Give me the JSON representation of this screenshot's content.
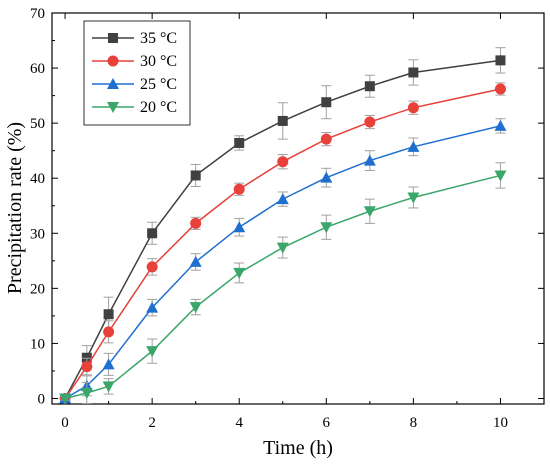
{
  "chart_data": {
    "type": "line",
    "xlabel": "Time (h)",
    "ylabel": "Precipitation rate (%)",
    "xlim": [
      -0.3,
      11
    ],
    "ylim": [
      -1,
      70
    ],
    "xticks": [
      0,
      2,
      4,
      6,
      8,
      10
    ],
    "yticks": [
      0,
      10,
      20,
      30,
      40,
      50,
      60,
      70
    ],
    "x": [
      0,
      0.5,
      1,
      2,
      3,
      4,
      5,
      6,
      7,
      8,
      10
    ],
    "legend_position": "top-left",
    "grid": false,
    "series": [
      {
        "name": "35 °C",
        "color": "#404040",
        "marker": "square",
        "values": [
          0,
          7.4,
          15.3,
          30.0,
          40.5,
          46.4,
          50.4,
          53.8,
          56.7,
          59.2,
          61.4
        ],
        "errors": [
          0.3,
          2.2,
          3.1,
          2.0,
          2.0,
          1.3,
          3.3,
          3.0,
          2.0,
          2.3,
          2.3
        ]
      },
      {
        "name": "30 °C",
        "color": "#e8403a",
        "marker": "circle",
        "values": [
          0,
          5.8,
          12.1,
          23.9,
          31.8,
          38.0,
          43.0,
          47.1,
          50.2,
          52.8,
          56.2
        ],
        "errors": [
          0.3,
          1.5,
          2.0,
          1.5,
          1.1,
          1.1,
          1.3,
          1.2,
          1.2,
          1.2,
          1.1
        ]
      },
      {
        "name": "25 °C",
        "color": "#1f6fd0",
        "marker": "triangle-up",
        "values": [
          0,
          2.3,
          6.2,
          16.5,
          24.8,
          31.1,
          36.2,
          40.1,
          43.2,
          45.7,
          49.5
        ],
        "errors": [
          0.3,
          1.8,
          2.0,
          1.5,
          1.5,
          1.6,
          1.3,
          1.7,
          1.8,
          1.6,
          1.3
        ]
      },
      {
        "name": "20 °C",
        "color": "#3aa66a",
        "marker": "triangle-down",
        "values": [
          0,
          1.0,
          2.2,
          8.6,
          16.6,
          22.8,
          27.4,
          31.1,
          34.0,
          36.5,
          40.5
        ],
        "errors": [
          0.3,
          1.9,
          1.4,
          2.2,
          1.4,
          1.8,
          1.9,
          2.2,
          2.2,
          1.9,
          2.3
        ]
      }
    ]
  }
}
